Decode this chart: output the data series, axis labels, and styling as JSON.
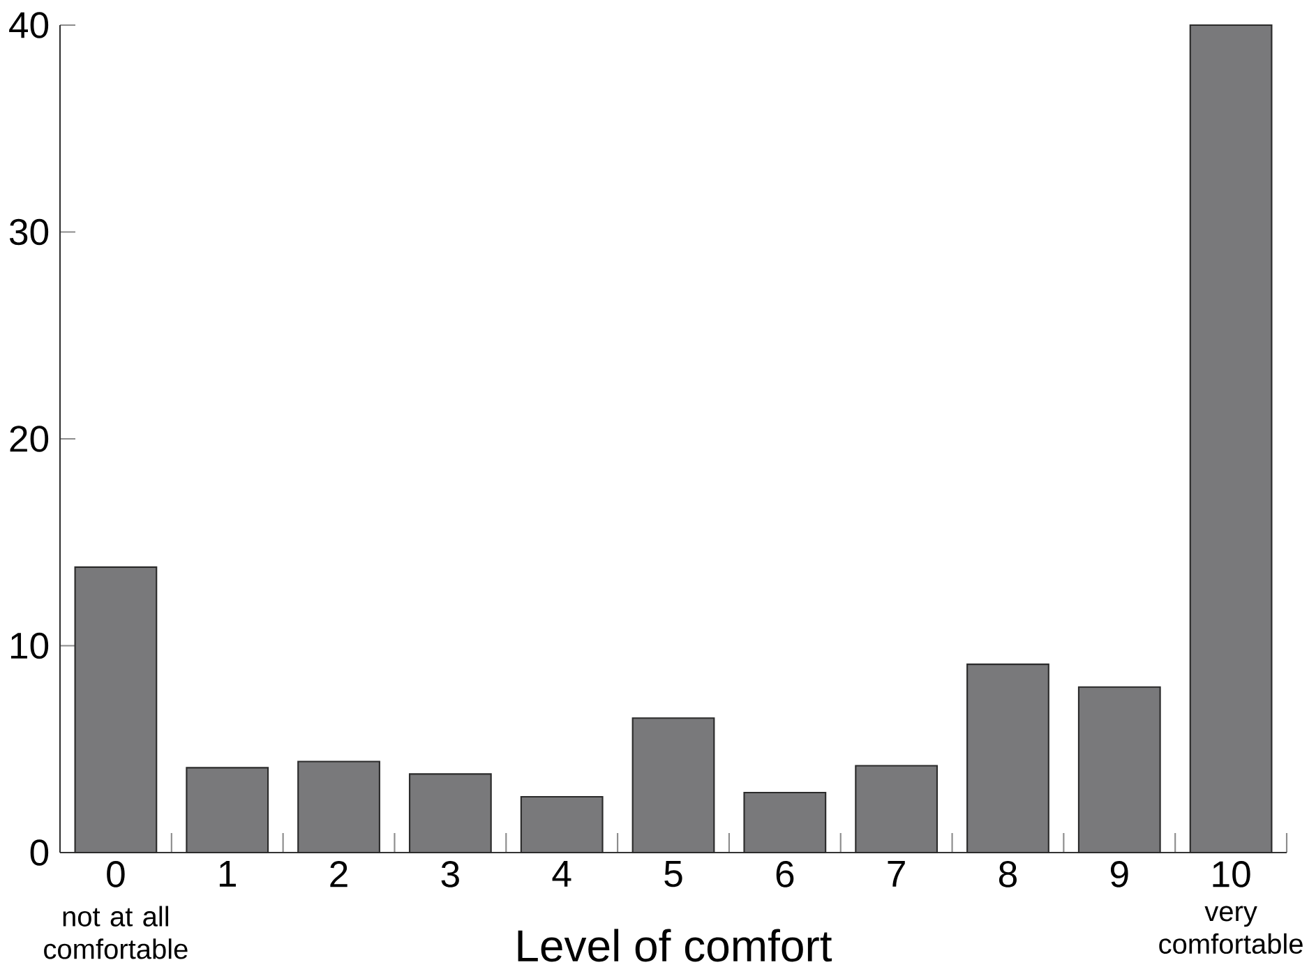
{
  "chart_data": {
    "type": "bar",
    "xlabel": "Level of comfort",
    "categories": [
      "0",
      "1",
      "2",
      "3",
      "4",
      "5",
      "6",
      "7",
      "8",
      "9",
      "10"
    ],
    "values": [
      13.8,
      4.1,
      4.4,
      3.8,
      2.7,
      6.5,
      2.9,
      4.2,
      9.1,
      8.0,
      40
    ],
    "color": "#79797b",
    "ylim": [
      0,
      40
    ],
    "yticks": [
      0,
      10,
      20,
      30,
      40
    ],
    "annotations": [
      "not at all comfortable",
      "very comfortable"
    ]
  }
}
